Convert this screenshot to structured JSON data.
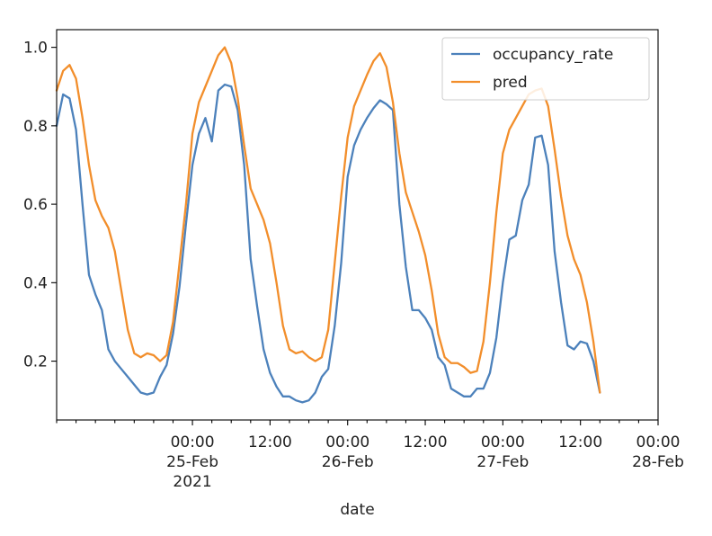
{
  "chart_data": {
    "type": "line",
    "xlabel": "date",
    "ylabel": "",
    "x_start": "2021-02-24T03:00",
    "x_step_hours": 1,
    "xlim": [
      "2021-02-24T03:00",
      "2021-02-28T00:00"
    ],
    "ylim": [
      0.05,
      1.045
    ],
    "grid": false,
    "legend_position": "top-right",
    "y_ticks": [
      {
        "value": 0.2,
        "label": "0.2"
      },
      {
        "value": 0.4,
        "label": "0.4"
      },
      {
        "value": 0.6,
        "label": "0.6"
      },
      {
        "value": 0.8,
        "label": "0.8"
      },
      {
        "value": 1.0,
        "label": "1.0"
      }
    ],
    "x_ticks": [
      {
        "hour": 21,
        "label": "00:00",
        "sub": "25-Feb",
        "sub2": "2021"
      },
      {
        "hour": 33,
        "label": "12:00",
        "sub": "",
        "sub2": ""
      },
      {
        "hour": 45,
        "label": "00:00",
        "sub": "26-Feb",
        "sub2": ""
      },
      {
        "hour": 57,
        "label": "12:00",
        "sub": "",
        "sub2": ""
      },
      {
        "hour": 69,
        "label": "00:00",
        "sub": "27-Feb",
        "sub2": ""
      },
      {
        "hour": 81,
        "label": "12:00",
        "sub": "",
        "sub2": ""
      },
      {
        "hour": 93,
        "label": "00:00",
        "sub": "28-Feb",
        "sub2": ""
      }
    ],
    "series": [
      {
        "name": "occupancy_rate",
        "color": "#4c81bb",
        "values": [
          0.8,
          0.88,
          0.87,
          0.79,
          0.6,
          0.42,
          0.37,
          0.33,
          0.23,
          0.2,
          0.18,
          0.16,
          0.14,
          0.12,
          0.115,
          0.12,
          0.16,
          0.19,
          0.27,
          0.39,
          0.55,
          0.7,
          0.78,
          0.82,
          0.76,
          0.89,
          0.905,
          0.9,
          0.84,
          0.7,
          0.46,
          0.34,
          0.23,
          0.17,
          0.135,
          0.11,
          0.11,
          0.1,
          0.095,
          0.1,
          0.12,
          0.16,
          0.18,
          0.29,
          0.45,
          0.67,
          0.75,
          0.79,
          0.82,
          0.845,
          0.865,
          0.855,
          0.84,
          0.6,
          0.44,
          0.33,
          0.33,
          0.31,
          0.28,
          0.21,
          0.19,
          0.13,
          0.12,
          0.11,
          0.11,
          0.13,
          0.13,
          0.17,
          0.26,
          0.4,
          0.51,
          0.52,
          0.61,
          0.65,
          0.77,
          0.775,
          0.7,
          0.48,
          0.35,
          0.24,
          0.23,
          0.25,
          0.245,
          0.2,
          0.12
        ]
      },
      {
        "name": "pred",
        "color": "#f28e2b",
        "values": [
          0.89,
          0.94,
          0.955,
          0.92,
          0.82,
          0.7,
          0.61,
          0.57,
          0.54,
          0.48,
          0.38,
          0.28,
          0.22,
          0.21,
          0.22,
          0.215,
          0.2,
          0.215,
          0.3,
          0.45,
          0.6,
          0.78,
          0.86,
          0.9,
          0.94,
          0.98,
          1.0,
          0.96,
          0.87,
          0.75,
          0.64,
          0.6,
          0.56,
          0.5,
          0.4,
          0.29,
          0.23,
          0.22,
          0.225,
          0.21,
          0.2,
          0.21,
          0.28,
          0.45,
          0.62,
          0.77,
          0.85,
          0.89,
          0.93,
          0.965,
          0.985,
          0.95,
          0.86,
          0.73,
          0.63,
          0.58,
          0.53,
          0.47,
          0.38,
          0.27,
          0.21,
          0.195,
          0.195,
          0.185,
          0.17,
          0.175,
          0.25,
          0.4,
          0.58,
          0.73,
          0.79,
          0.82,
          0.85,
          0.88,
          0.89,
          0.895,
          0.85,
          0.74,
          0.62,
          0.52,
          0.46,
          0.42,
          0.35,
          0.25,
          0.12
        ]
      }
    ]
  }
}
